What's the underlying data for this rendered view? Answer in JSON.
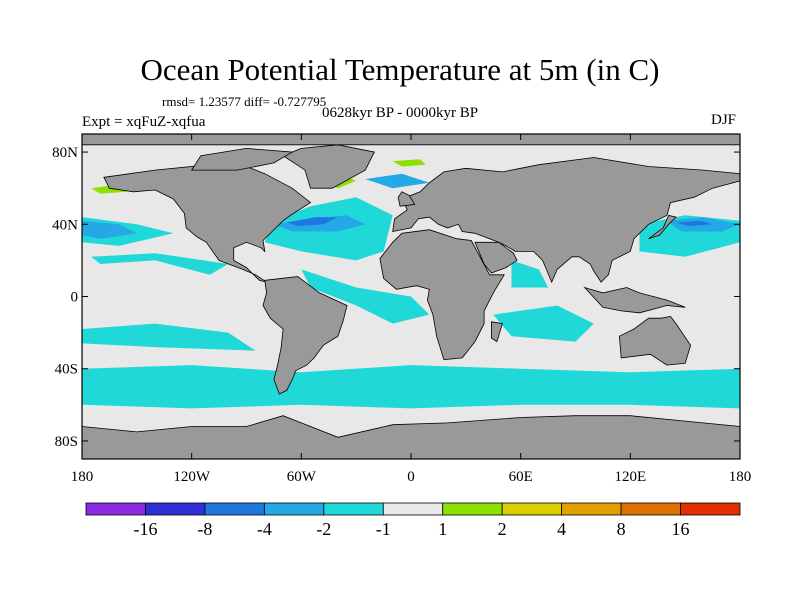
{
  "chart_data": {
    "type": "heatmap",
    "title": "Ocean Potential Temperature at 5m (in C)",
    "stats_line": "rmsd= 1.23577 diff= -0.727795",
    "period": "0628kyr BP - 0000kyr BP",
    "experiment": "Expt = xqFuZ-xqfua",
    "season": "DJF",
    "x_axis": {
      "range": [
        -180,
        180
      ],
      "ticks": [
        {
          "value": -180,
          "label": "180"
        },
        {
          "value": -120,
          "label": "120W"
        },
        {
          "value": -60,
          "label": "60W"
        },
        {
          "value": 0,
          "label": "0"
        },
        {
          "value": 60,
          "label": "60E"
        },
        {
          "value": 120,
          "label": "120E"
        },
        {
          "value": 180,
          "label": "180"
        }
      ]
    },
    "y_axis": {
      "range": [
        -90,
        90
      ],
      "ticks": [
        {
          "value": 80,
          "label": "80N"
        },
        {
          "value": 40,
          "label": "40N"
        },
        {
          "value": 0,
          "label": "0"
        },
        {
          "value": -40,
          "label": "40S"
        },
        {
          "value": -80,
          "label": "80S"
        }
      ]
    },
    "colorbar": {
      "levels": [
        "-16",
        "-8",
        "-4",
        "-2",
        "-1",
        "1",
        "2",
        "4",
        "8",
        "16"
      ],
      "colors": [
        "#8a2be2",
        "#2f2fd8",
        "#1f78e0",
        "#24a8e6",
        "#20d8d8",
        "#e8e8e8",
        "#8ee000",
        "#d8d000",
        "#e0a000",
        "#e07000",
        "#e03000"
      ]
    },
    "colors": {
      "land": "#999999",
      "no_data": "#e8e8e8",
      "outline": "#000000"
    }
  }
}
